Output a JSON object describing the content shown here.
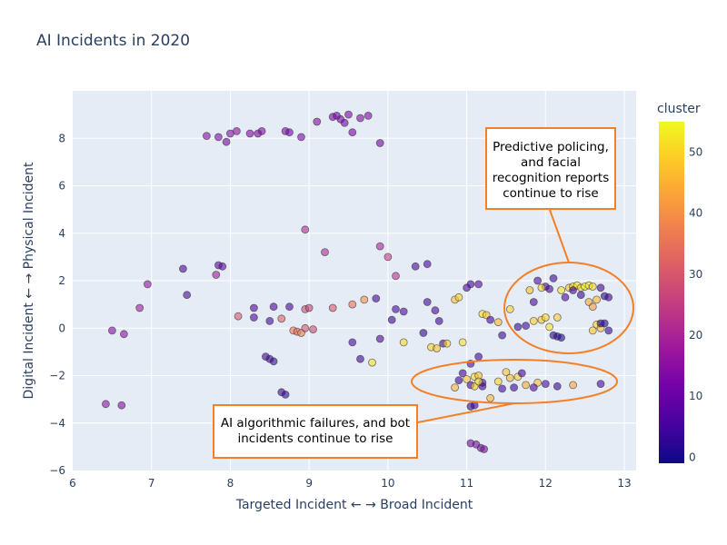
{
  "chart_data": {
    "type": "scatter",
    "title": "AI Incidents in 2020",
    "xlabel": "Targeted Incident ← → Broad Incident",
    "ylabel": "Digital Incident ← → Physical Incident",
    "xlim": [
      6,
      13.15
    ],
    "ylim": [
      -6,
      10
    ],
    "xticks": [
      6,
      7,
      8,
      9,
      10,
      11,
      12,
      13
    ],
    "yticks": [
      -6,
      -4,
      -2,
      0,
      2,
      4,
      6,
      8
    ],
    "grid": true,
    "colorbar": {
      "title": "cluster",
      "range": [
        -1,
        55
      ],
      "ticks": [
        0,
        10,
        20,
        30,
        40,
        50
      ],
      "colorscale": [
        "#0d0887",
        "#46039f",
        "#7201a8",
        "#9c179e",
        "#bd3786",
        "#d8576b",
        "#ed7953",
        "#fb9f3a",
        "#fdca26",
        "#f0f921"
      ]
    },
    "points": [
      [
        7.7,
        8.1,
        14
      ],
      [
        7.85,
        8.05,
        13
      ],
      [
        7.95,
        7.85,
        12
      ],
      [
        8.0,
        8.2,
        14
      ],
      [
        8.08,
        8.3,
        15
      ],
      [
        8.25,
        8.2,
        14
      ],
      [
        8.35,
        8.2,
        13
      ],
      [
        8.4,
        8.3,
        14
      ],
      [
        8.7,
        8.3,
        13
      ],
      [
        8.75,
        8.25,
        12
      ],
      [
        8.9,
        8.05,
        13
      ],
      [
        9.1,
        8.7,
        14
      ],
      [
        9.3,
        8.9,
        13
      ],
      [
        9.35,
        8.95,
        12
      ],
      [
        9.4,
        8.8,
        12
      ],
      [
        9.45,
        8.65,
        11
      ],
      [
        9.5,
        9.0,
        13
      ],
      [
        9.55,
        8.25,
        12
      ],
      [
        9.65,
        8.85,
        14
      ],
      [
        9.75,
        8.95,
        13
      ],
      [
        9.9,
        7.8,
        12
      ],
      [
        7.4,
        2.5,
        5
      ],
      [
        7.45,
        1.4,
        6
      ],
      [
        7.85,
        2.65,
        8
      ],
      [
        7.9,
        2.6,
        9
      ],
      [
        7.82,
        2.25,
        18
      ],
      [
        8.3,
        0.85,
        7
      ],
      [
        8.3,
        0.45,
        6
      ],
      [
        8.5,
        0.3,
        5
      ],
      [
        8.55,
        0.9,
        6
      ],
      [
        8.75,
        0.9,
        5
      ],
      [
        8.45,
        -1.2,
        4
      ],
      [
        8.5,
        -1.3,
        4
      ],
      [
        8.55,
        -1.4,
        3
      ],
      [
        8.65,
        -2.7,
        3
      ],
      [
        8.7,
        -2.8,
        2
      ],
      [
        6.95,
        1.85,
        16
      ],
      [
        6.85,
        0.85,
        18
      ],
      [
        6.5,
        -0.1,
        14
      ],
      [
        6.65,
        -0.25,
        15
      ],
      [
        6.42,
        -3.2,
        16
      ],
      [
        6.62,
        -3.25,
        14
      ],
      [
        8.95,
        4.15,
        22
      ],
      [
        9.2,
        3.2,
        21
      ],
      [
        9.9,
        3.45,
        20
      ],
      [
        10.0,
        3.0,
        25
      ],
      [
        10.1,
        2.2,
        23
      ],
      [
        8.1,
        0.5,
        30
      ],
      [
        8.65,
        0.4,
        32
      ],
      [
        8.95,
        0.8,
        28
      ],
      [
        9.0,
        0.85,
        26
      ],
      [
        8.8,
        -0.1,
        36
      ],
      [
        8.85,
        -0.15,
        34
      ],
      [
        8.9,
        -0.2,
        38
      ],
      [
        8.95,
        0.0,
        30
      ],
      [
        9.05,
        -0.05,
        27
      ],
      [
        9.3,
        0.85,
        30
      ],
      [
        9.55,
        1.0,
        35
      ],
      [
        9.7,
        1.2,
        40
      ],
      [
        9.85,
        1.25,
        5
      ],
      [
        9.9,
        -0.45,
        6
      ],
      [
        9.55,
        -0.6,
        5
      ],
      [
        9.65,
        -1.3,
        4
      ],
      [
        9.8,
        -1.45,
        52
      ],
      [
        10.05,
        0.35,
        4
      ],
      [
        10.1,
        0.8,
        5
      ],
      [
        10.2,
        0.7,
        6
      ],
      [
        10.35,
        2.6,
        6
      ],
      [
        10.5,
        2.7,
        5
      ],
      [
        10.5,
        1.1,
        5
      ],
      [
        10.6,
        0.75,
        6
      ],
      [
        10.45,
        -0.2,
        3
      ],
      [
        10.65,
        0.3,
        4
      ],
      [
        10.7,
        -0.65,
        5
      ],
      [
        10.85,
        1.2,
        48
      ],
      [
        10.9,
        1.3,
        50
      ],
      [
        10.95,
        -0.6,
        52
      ],
      [
        10.55,
        -0.8,
        50
      ],
      [
        10.62,
        -0.85,
        48
      ],
      [
        10.2,
        -0.6,
        51
      ],
      [
        10.75,
        -0.65,
        50
      ],
      [
        11.2,
        0.6,
        52
      ],
      [
        11.25,
        0.55,
        48
      ],
      [
        11.4,
        0.25,
        46
      ],
      [
        11.55,
        0.8,
        50
      ],
      [
        11.0,
        1.7,
        6
      ],
      [
        11.05,
        1.85,
        5
      ],
      [
        11.15,
        1.85,
        7
      ],
      [
        11.3,
        0.35,
        5
      ],
      [
        11.45,
        -0.3,
        4
      ],
      [
        11.65,
        0.05,
        3
      ],
      [
        11.75,
        0.1,
        4
      ],
      [
        11.85,
        1.1,
        5
      ],
      [
        11.9,
        2.0,
        6
      ],
      [
        12.0,
        1.75,
        5
      ],
      [
        12.1,
        2.1,
        4
      ],
      [
        12.05,
        1.65,
        6
      ],
      [
        11.8,
        1.6,
        47
      ],
      [
        11.95,
        1.7,
        50
      ],
      [
        11.85,
        0.3,
        49
      ],
      [
        11.95,
        0.35,
        48
      ],
      [
        12.0,
        0.45,
        50
      ],
      [
        12.05,
        0.05,
        52
      ],
      [
        12.15,
        0.45,
        49
      ],
      [
        12.2,
        1.6,
        52
      ],
      [
        12.3,
        1.7,
        48
      ],
      [
        12.35,
        1.75,
        50
      ],
      [
        12.4,
        1.8,
        53
      ],
      [
        12.45,
        1.7,
        49
      ],
      [
        12.5,
        1.75,
        55
      ],
      [
        12.55,
        1.8,
        52
      ],
      [
        12.6,
        1.75,
        50
      ],
      [
        12.55,
        1.1,
        44
      ],
      [
        12.6,
        0.9,
        42
      ],
      [
        12.65,
        1.2,
        46
      ],
      [
        12.6,
        -0.1,
        48
      ],
      [
        12.65,
        0.15,
        50
      ],
      [
        12.7,
        0.0,
        47
      ],
      [
        12.25,
        1.3,
        6
      ],
      [
        12.35,
        1.6,
        5
      ],
      [
        12.45,
        1.4,
        4
      ],
      [
        12.7,
        1.7,
        5
      ],
      [
        12.75,
        1.35,
        3
      ],
      [
        12.8,
        1.3,
        4
      ],
      [
        12.7,
        0.2,
        2
      ],
      [
        12.75,
        0.2,
        1
      ],
      [
        12.8,
        -0.1,
        3
      ],
      [
        12.1,
        -0.3,
        2
      ],
      [
        12.15,
        -0.35,
        2
      ],
      [
        12.2,
        -0.4,
        1
      ],
      [
        11.15,
        -1.2,
        4
      ],
      [
        11.05,
        -1.5,
        6
      ],
      [
        10.95,
        -1.9,
        5
      ],
      [
        10.9,
        -2.2,
        4
      ],
      [
        11.05,
        -2.4,
        5
      ],
      [
        11.2,
        -2.3,
        6
      ],
      [
        11.2,
        -2.45,
        4
      ],
      [
        11.05,
        -3.3,
        3
      ],
      [
        11.1,
        -3.25,
        4
      ],
      [
        10.85,
        -2.5,
        46
      ],
      [
        11.0,
        -2.15,
        48
      ],
      [
        11.1,
        -2.05,
        50
      ],
      [
        11.15,
        -2.0,
        47
      ],
      [
        11.1,
        -2.45,
        49
      ],
      [
        11.15,
        -2.25,
        51
      ],
      [
        11.3,
        -2.95,
        45
      ],
      [
        11.4,
        -2.25,
        50
      ],
      [
        11.5,
        -1.85,
        48
      ],
      [
        11.55,
        -2.1,
        46
      ],
      [
        11.65,
        -2.05,
        49
      ],
      [
        11.75,
        -2.4,
        44
      ],
      [
        11.9,
        -2.3,
        47
      ],
      [
        12.35,
        -2.4,
        43
      ],
      [
        11.45,
        -2.55,
        5
      ],
      [
        11.6,
        -2.5,
        4
      ],
      [
        11.7,
        -1.9,
        5
      ],
      [
        11.85,
        -2.5,
        6
      ],
      [
        12.0,
        -2.35,
        5
      ],
      [
        12.15,
        -2.45,
        4
      ],
      [
        12.7,
        -2.35,
        5
      ],
      [
        11.05,
        -4.85,
        12
      ],
      [
        11.12,
        -4.9,
        13
      ],
      [
        11.18,
        -5.05,
        14
      ],
      [
        11.22,
        -5.1,
        13
      ]
    ],
    "annotations": [
      {
        "text": "Predictive policing,\nand facial\nrecognition reports\ncontinue to rise"
      },
      {
        "text": "AI algorithmic failures, and bot\nincidents continue to rise"
      }
    ]
  }
}
